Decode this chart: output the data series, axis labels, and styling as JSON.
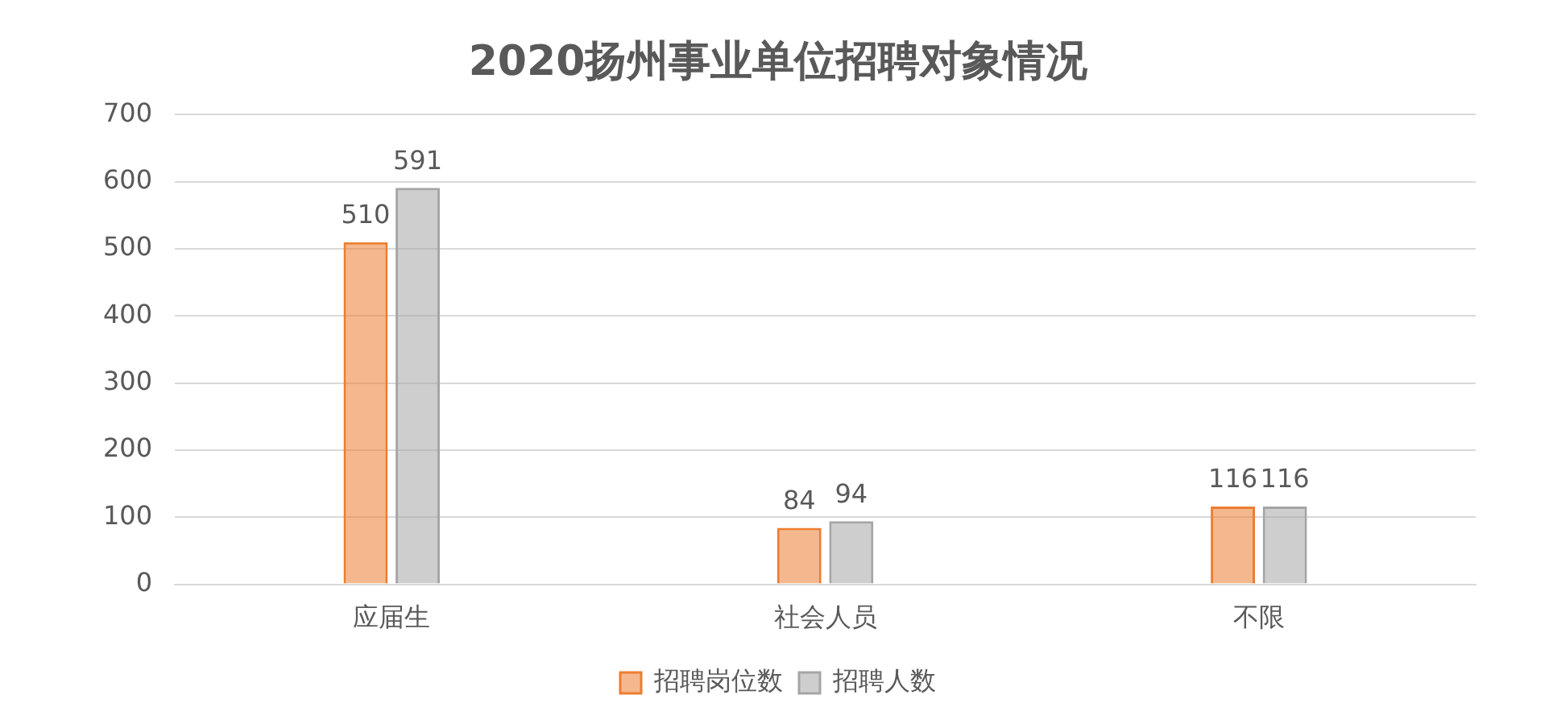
{
  "chart_data": {
    "type": "bar",
    "title": "2020扬州事业单位招聘对象情况",
    "categories": [
      "应届生",
      "社会人员",
      "不限"
    ],
    "series": [
      {
        "name": "招聘岗位数",
        "color": "#ed7d31",
        "values": [
          510,
          84,
          116
        ]
      },
      {
        "name": "招聘人数",
        "color": "#a5a5a5",
        "values": [
          591,
          94,
          116
        ]
      }
    ],
    "ylim": [
      0,
      700
    ],
    "yticks": [
      0,
      100,
      200,
      300,
      400,
      500,
      600,
      700
    ],
    "grid": "y",
    "legend": "bottom",
    "data_labels": true
  }
}
